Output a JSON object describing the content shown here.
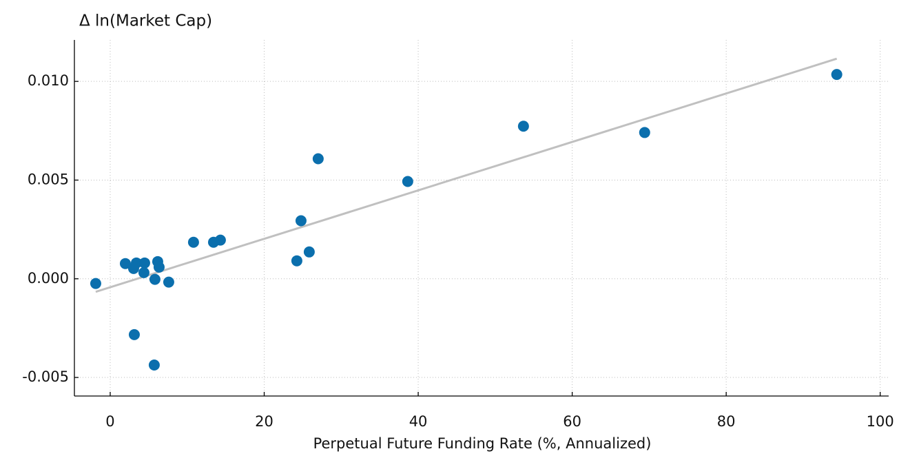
{
  "chart_data": {
    "type": "scatter",
    "title": "Δ ln(Market Cap)",
    "xlabel": "Perpetual Future Funding Rate (%, Annualized)",
    "xlim": [
      -4.65,
      101.1
    ],
    "ylim": [
      -0.00594,
      0.0121
    ],
    "xticks": [
      0,
      20,
      40,
      60,
      80,
      100
    ],
    "yticks": [
      {
        "value": -0.005,
        "label": "-0.005"
      },
      {
        "value": 0,
        "label": "0.000"
      },
      {
        "value": 0.005,
        "label": "0.005"
      },
      {
        "value": 0.01,
        "label": "0.010"
      }
    ],
    "grid": true,
    "series": [
      {
        "color": "#0b6fad",
        "x": [
          -1.88,
          1.97,
          3.4,
          3.04,
          4.47,
          4.38,
          6.17,
          6.35,
          5.81,
          7.6,
          3.13,
          5.72,
          10.82,
          13.42,
          14.31,
          24.78,
          24.24,
          25.85,
          27.01,
          38.64,
          53.67,
          69.41,
          94.36
        ],
        "values": [
          -0.00024,
          0.00077,
          0.0008,
          0.00052,
          0.0008,
          0.00031,
          0.00087,
          0.00059,
          -3e-05,
          -0.00017,
          -0.00283,
          -0.00437,
          0.00185,
          0.00185,
          0.00196,
          0.00294,
          0.00091,
          0.00136,
          0.00608,
          0.00493,
          0.00773,
          0.00741,
          0.01035
        ]
      }
    ],
    "fit": {
      "color": "#c0c0c0",
      "x": [
        -1.88,
        94.36
      ],
      "values": [
        -0.00066,
        0.01115
      ]
    }
  }
}
